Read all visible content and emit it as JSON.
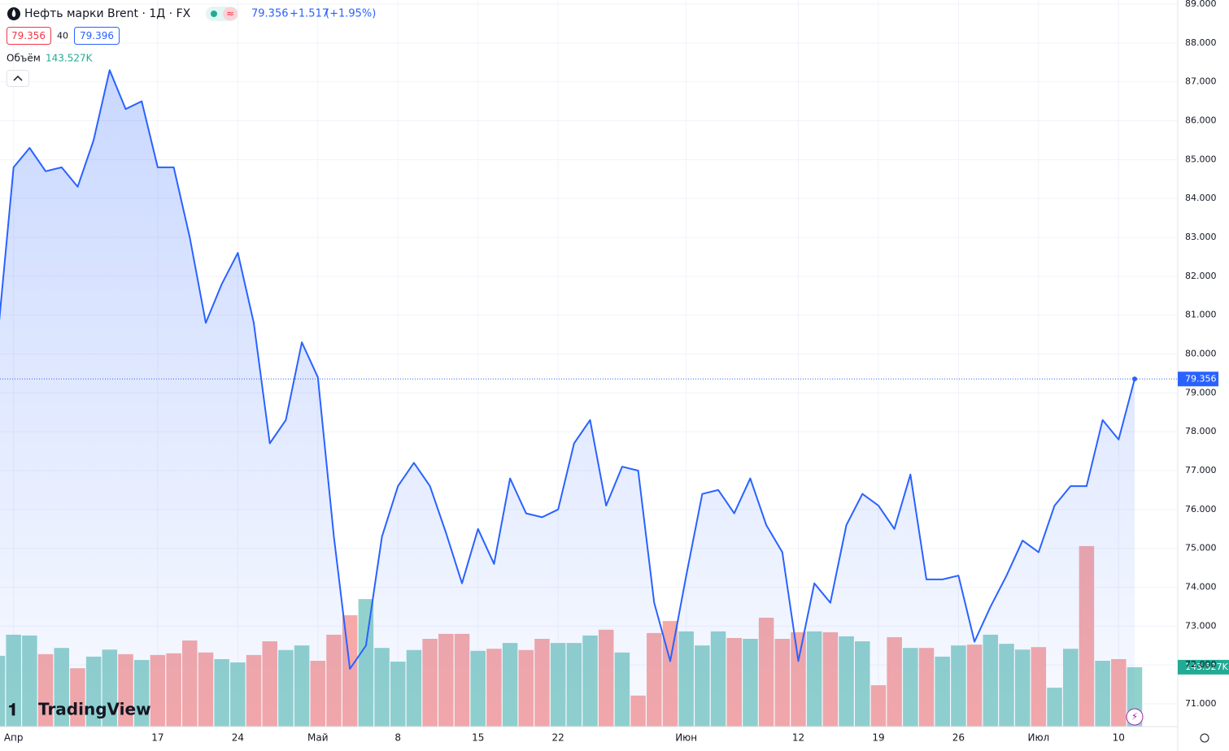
{
  "header": {
    "title": "Нефть марки Brent · 1Д · FX",
    "change": "+1.517",
    "change_pct": "(+1.95%)",
    "bid": "79.356",
    "spread": "40",
    "ask": "79.396",
    "volume_label": "Объём",
    "logo": "TradingView"
  },
  "chart_data": {
    "type": "line",
    "categories": [
      null,
      "Апр",
      null,
      null,
      null,
      null,
      null,
      null,
      null,
      null,
      "17",
      null,
      null,
      null,
      null,
      "24",
      null,
      null,
      null,
      null,
      "Май",
      null,
      null,
      null,
      null,
      "8",
      null,
      null,
      null,
      null,
      "15",
      null,
      null,
      null,
      null,
      "22",
      null,
      null,
      null,
      null,
      null,
      null,
      null,
      "Июн",
      null,
      null,
      null,
      null,
      null,
      null,
      "12",
      null,
      null,
      null,
      null,
      "19",
      null,
      null,
      null,
      null,
      "26",
      null,
      null,
      null,
      null,
      "Июл",
      null,
      null,
      null,
      null,
      "10",
      null
    ],
    "series": [
      {
        "type": "line",
        "color": "#2962ff",
        "values": [
          80.4,
          84.8,
          85.3,
          84.7,
          84.8,
          84.3,
          85.5,
          87.3,
          86.3,
          86.5,
          84.8,
          84.8,
          83.0,
          80.8,
          81.8,
          82.6,
          80.8,
          77.7,
          78.3,
          80.3,
          79.4,
          75.3,
          71.9,
          72.5,
          75.3,
          76.6,
          77.2,
          76.6,
          75.4,
          74.1,
          75.5,
          74.6,
          76.8,
          75.9,
          75.8,
          76.0,
          77.7,
          78.3,
          76.1,
          77.1,
          77.0,
          73.6,
          72.1,
          74.3,
          76.4,
          76.5,
          75.9,
          76.8,
          75.6,
          74.9,
          72.1,
          74.1,
          73.6,
          75.6,
          76.4,
          76.1,
          75.5,
          76.9,
          74.2,
          74.2,
          74.3,
          72.6,
          73.5,
          74.3,
          75.2,
          74.9,
          76.1,
          76.6,
          76.6,
          78.3,
          77.8,
          79.356
        ]
      },
      {
        "name": "Объём",
        "type": "bar",
        "axis": "y2",
        "color_up": "#92d2cc",
        "color_down": "#f7a9a7",
        "last_label": "143.527K",
        "values": [
          171000,
          222000,
          220000,
          175000,
          190000,
          141000,
          169000,
          186000,
          175000,
          161000,
          173000,
          177000,
          208000,
          179000,
          163000,
          155000,
          173000,
          206000,
          185000,
          196000,
          159000,
          222000,
          269000,
          308000,
          190000,
          157000,
          185000,
          212000,
          224000,
          224000,
          183000,
          188000,
          202000,
          185000,
          212000,
          202000,
          202000,
          220000,
          234000,
          179000,
          75000,
          226000,
          255000,
          230000,
          196000,
          230000,
          214000,
          212000,
          263000,
          212000,
          228000,
          230000,
          228000,
          218000,
          206000,
          100000,
          216000,
          190000,
          190000,
          169000,
          196000,
          198000,
          222000,
          200000,
          186000,
          192000,
          94000,
          188000,
          436000,
          159000,
          163000,
          143527
        ],
        "up": [
          true,
          true,
          true,
          false,
          true,
          false,
          true,
          true,
          false,
          true,
          false,
          false,
          false,
          false,
          true,
          true,
          false,
          false,
          true,
          true,
          false,
          false,
          false,
          true,
          true,
          true,
          true,
          false,
          false,
          false,
          true,
          false,
          true,
          false,
          false,
          true,
          true,
          true,
          false,
          true,
          false,
          false,
          false,
          true,
          true,
          true,
          false,
          true,
          false,
          false,
          false,
          true,
          false,
          true,
          true,
          false,
          false,
          true,
          false,
          true,
          true,
          false,
          true,
          true,
          true,
          false,
          true,
          true,
          false,
          true,
          false,
          true
        ]
      }
    ],
    "ylim": [
      71,
      89
    ],
    "yticks": [
      {
        "value": 71,
        "label": "71.000"
      },
      {
        "value": 72,
        "label": "72.000"
      },
      {
        "value": 73,
        "label": "73.000"
      },
      {
        "value": 74,
        "label": "74.000"
      },
      {
        "value": 75,
        "label": "75.000"
      },
      {
        "value": 76,
        "label": "76.000"
      },
      {
        "value": 77,
        "label": "77.000"
      },
      {
        "value": 78,
        "label": "78.000"
      },
      {
        "value": 79,
        "label": "79.000"
      },
      {
        "value": 80,
        "label": "80.000"
      },
      {
        "value": 81,
        "label": "81.000"
      },
      {
        "value": 82,
        "label": "82.000"
      },
      {
        "value": 83,
        "label": "83.000"
      },
      {
        "value": 84,
        "label": "84.000"
      },
      {
        "value": 85,
        "label": "85.000"
      },
      {
        "value": 86,
        "label": "86.000"
      },
      {
        "value": 87,
        "label": "87.000"
      },
      {
        "value": 88,
        "label": "88.000"
      },
      {
        "value": 89,
        "label": "89.000"
      }
    ],
    "y2lim": [
      0,
      530000
    ],
    "grid": true
  }
}
